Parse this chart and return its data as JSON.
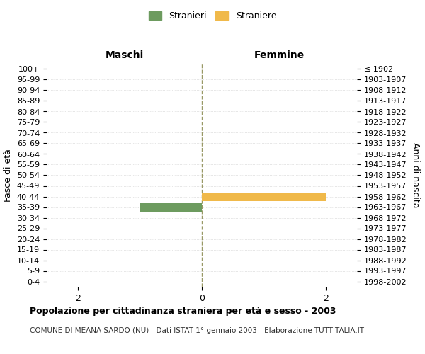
{
  "age_groups": [
    "100+",
    "95-99",
    "90-94",
    "85-89",
    "80-84",
    "75-79",
    "70-74",
    "65-69",
    "60-64",
    "55-59",
    "50-54",
    "45-49",
    "40-44",
    "35-39",
    "30-34",
    "25-29",
    "20-24",
    "15-19",
    "10-14",
    "5-9",
    "0-4"
  ],
  "birth_years": [
    "≤ 1902",
    "1903-1907",
    "1908-1912",
    "1913-1917",
    "1918-1922",
    "1923-1927",
    "1928-1932",
    "1933-1937",
    "1938-1942",
    "1943-1947",
    "1948-1952",
    "1953-1957",
    "1958-1962",
    "1963-1967",
    "1968-1972",
    "1973-1977",
    "1978-1982",
    "1983-1987",
    "1988-1992",
    "1993-1997",
    "1998-2002"
  ],
  "males": [
    0,
    0,
    0,
    0,
    0,
    0,
    0,
    0,
    0,
    0,
    0,
    0,
    0,
    1,
    0,
    0,
    0,
    0,
    0,
    0,
    0
  ],
  "females": [
    0,
    0,
    0,
    0,
    0,
    0,
    0,
    0,
    0,
    0,
    0,
    0,
    2,
    0,
    0,
    0,
    0,
    0,
    0,
    0,
    0
  ],
  "male_color": "#6d9b5f",
  "female_color": "#f0b94a",
  "xlim": 2.5,
  "xticks": [
    -2,
    0,
    2
  ],
  "xlabel_left": "Maschi",
  "xlabel_right": "Femmine",
  "ylabel_left": "Fasce di età",
  "ylabel_right": "Anni di nascita",
  "legend_male": "Stranieri",
  "legend_female": "Straniere",
  "title": "Popolazione per cittadinanza straniera per età e sesso - 2003",
  "subtitle": "COMUNE DI MEANA SARDO (NU) - Dati ISTAT 1° gennaio 2003 - Elaborazione TUTTITALIA.IT",
  "bg_color": "#ffffff",
  "grid_color": "#cccccc",
  "bar_height": 0.8,
  "center_line_color": "#999966"
}
